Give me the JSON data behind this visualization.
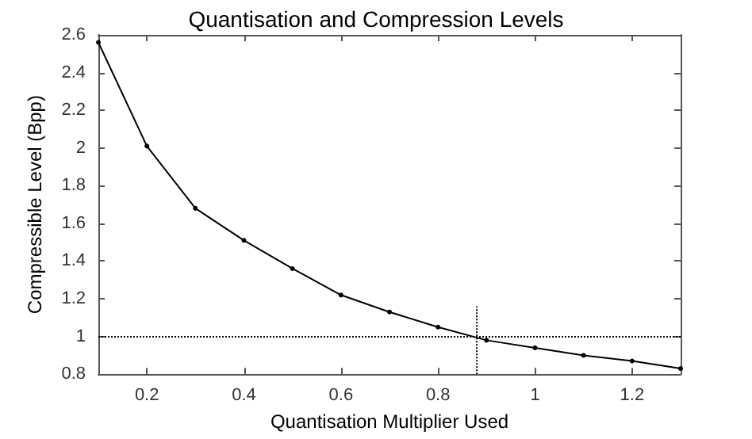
{
  "chart_data": {
    "type": "line",
    "title": "Quantisation and Compression Levels",
    "xlabel": "Quantisation Multiplier Used",
    "ylabel": "Compressible Level (Bpp)",
    "x": [
      0.1,
      0.2,
      0.3,
      0.4,
      0.5,
      0.6,
      0.7,
      0.8,
      0.9,
      1.0,
      1.1,
      1.2,
      1.3
    ],
    "series": [
      {
        "color": "#000000",
        "values": [
          2.56,
          2.01,
          1.68,
          1.51,
          1.36,
          1.22,
          1.13,
          1.05,
          0.98,
          0.94,
          0.9,
          0.87,
          0.83
        ],
        "marker": "circle",
        "line_style": "solid"
      },
      {
        "color": "#000000",
        "x": [
          0.88,
          0.88
        ],
        "values": [
          0.8,
          1.16
        ],
        "marker": "none",
        "line_style": "dotted"
      }
    ],
    "ref_lines": [
      {
        "axis": "y",
        "value": 1,
        "color": "#000000",
        "line_style": "dotted"
      }
    ],
    "xlim": [
      0.1,
      1.3
    ],
    "xticks": [
      0.2,
      0.4,
      0.6,
      0.8,
      1,
      1.2
    ],
    "ylim": [
      0.8,
      2.6
    ],
    "yticks": [
      0.8,
      1,
      1.2,
      1.4,
      1.6,
      1.8,
      2,
      2.2,
      2.4,
      2.6
    ],
    "grid": false
  }
}
